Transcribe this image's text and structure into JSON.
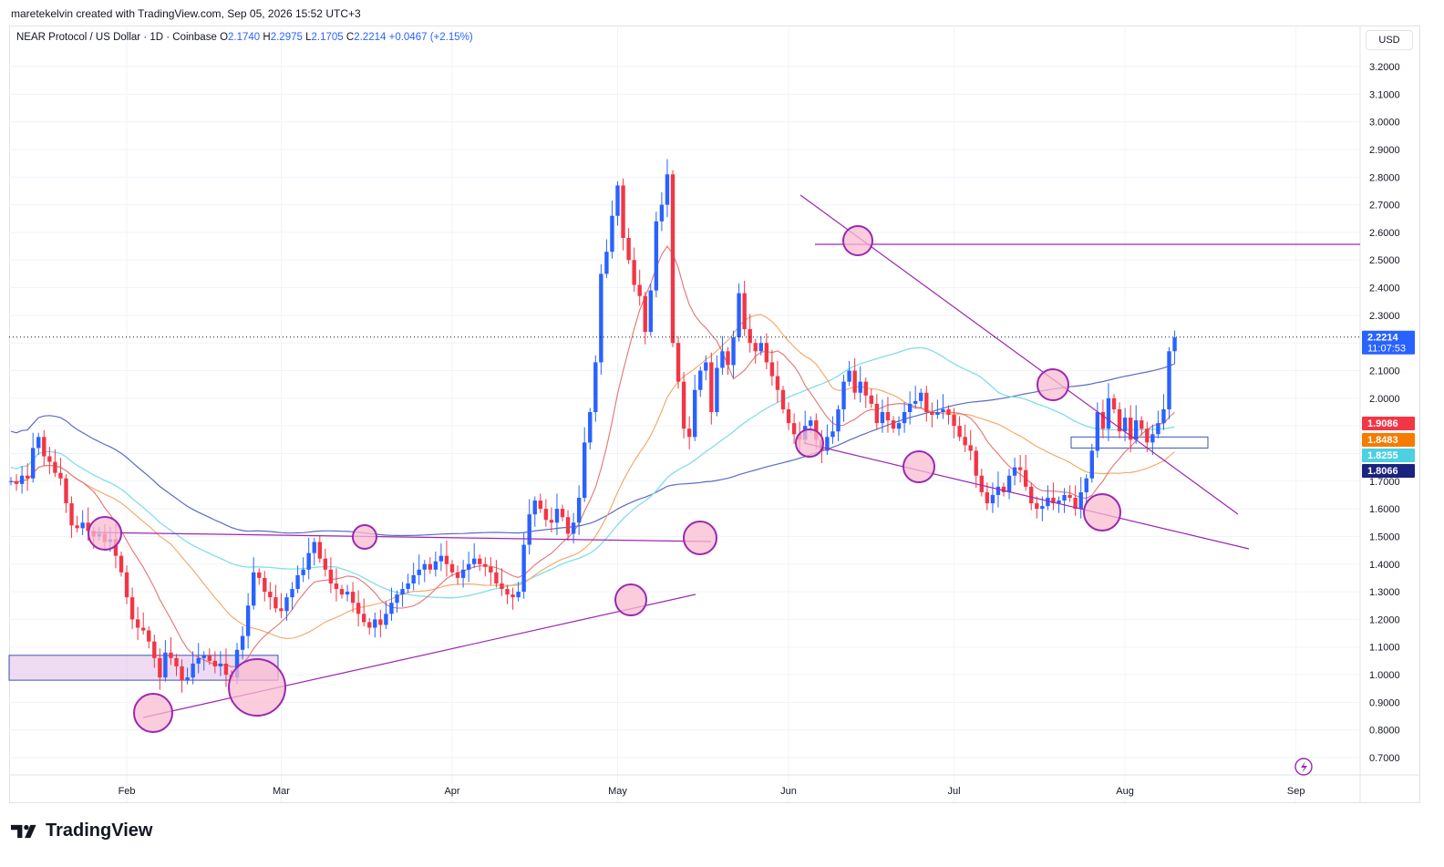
{
  "header": {
    "credit": "maretekelvin created with TradingView.com, Sep 05, 2026 15:52 UTC+3"
  },
  "legend": {
    "symbol": "NEAR Protocol / US Dollar · 1D · Coinbase",
    "o_label": "O",
    "o": "2.1740",
    "h_label": "H",
    "h": "2.2975",
    "l_label": "L",
    "l": "2.1705",
    "c_label": "C",
    "c": "2.2214",
    "change": "+0.0467 (+2.15%)"
  },
  "currency": "USD",
  "brand": "TradingView",
  "colors": {
    "up": "#2962ff",
    "down": "#f23645",
    "ma_red": "#e57373",
    "ma_orange": "#f4a460",
    "ma_cyan": "#80deea",
    "ma_blue": "#5c6bc0",
    "annotation": "#9c27b0",
    "circle_fill": "#f8bbd0"
  },
  "chart_data": {
    "type": "candlestick",
    "ylim": [
      0.66,
      3.25
    ],
    "yticks": [
      "3.2000",
      "3.1000",
      "3.0000",
      "2.9000",
      "2.8000",
      "2.7000",
      "2.6000",
      "2.5000",
      "2.4000",
      "2.3000",
      "2.2000",
      "2.1000",
      "2.0000",
      "1.9000",
      "1.8000",
      "1.7000",
      "1.6000",
      "1.5000",
      "1.4000",
      "1.3000",
      "1.2000",
      "1.1000",
      "1.0000",
      "0.9000",
      "0.8000",
      "0.7000"
    ],
    "xticks": [
      {
        "label": "Feb",
        "day": 31
      },
      {
        "label": "Mar",
        "day": 59
      },
      {
        "label": "Apr",
        "day": 90
      },
      {
        "label": "May",
        "day": 120
      },
      {
        "label": "Jun",
        "day": 151
      },
      {
        "label": "Jul",
        "day": 181
      },
      {
        "label": "Aug",
        "day": 212
      },
      {
        "label": "Sep",
        "day": 243
      }
    ],
    "price_badges": [
      {
        "value": "2.2214",
        "sub": "11:07:53",
        "color": "#2962ff",
        "price": 2.2214
      },
      {
        "value": "1.9086",
        "color": "#f23645",
        "price": 1.9086
      },
      {
        "value": "1.8483",
        "color": "#f57c00",
        "price": 1.8483
      },
      {
        "value": "1.8255",
        "color": "#4dd0e1",
        "price": 1.8255
      },
      {
        "value": "1.8066",
        "color": "#1a237e",
        "price": 1.8066
      }
    ],
    "closes": [
      1.7,
      1.69,
      1.72,
      1.71,
      1.82,
      1.86,
      1.79,
      1.77,
      1.73,
      1.71,
      1.62,
      1.54,
      1.53,
      1.55,
      1.52,
      1.5,
      1.51,
      1.48,
      1.49,
      1.43,
      1.37,
      1.28,
      1.2,
      1.17,
      1.16,
      1.12,
      1.06,
      0.99,
      1.08,
      1.06,
      1.03,
      0.98,
      0.99,
      1.04,
      1.06,
      1.07,
      1.05,
      1.03,
      1.04,
      1.0,
      0.99,
      1.09,
      1.14,
      1.25,
      1.37,
      1.35,
      1.3,
      1.28,
      1.24,
      1.23,
      1.28,
      1.31,
      1.36,
      1.38,
      1.44,
      1.48,
      1.42,
      1.38,
      1.33,
      1.31,
      1.29,
      1.3,
      1.26,
      1.22,
      1.19,
      1.17,
      1.2,
      1.18,
      1.22,
      1.26,
      1.29,
      1.31,
      1.33,
      1.36,
      1.38,
      1.4,
      1.38,
      1.41,
      1.43,
      1.4,
      1.37,
      1.35,
      1.38,
      1.4,
      1.42,
      1.4,
      1.39,
      1.37,
      1.33,
      1.31,
      1.29,
      1.28,
      1.3,
      1.47,
      1.58,
      1.63,
      1.6,
      1.56,
      1.55,
      1.6,
      1.57,
      1.51,
      1.55,
      1.64,
      1.84,
      1.95,
      2.13,
      2.45,
      2.53,
      2.66,
      2.77,
      2.58,
      2.5,
      2.41,
      2.37,
      2.24,
      2.39,
      2.64,
      2.7,
      2.81,
      2.2,
      2.06,
      1.89,
      1.86,
      2.03,
      2.1,
      2.13,
      1.95,
      2.11,
      2.17,
      2.12,
      2.22,
      2.38,
      2.25,
      2.2,
      2.17,
      2.2,
      2.13,
      2.08,
      2.03,
      1.96,
      1.91,
      1.87,
      1.85,
      1.9,
      1.92,
      1.85,
      1.81,
      1.86,
      1.88,
      1.96,
      2.06,
      2.1,
      2.02,
      2.06,
      2.01,
      1.98,
      1.91,
      1.95,
      1.92,
      1.89,
      1.91,
      1.95,
      1.98,
      1.99,
      2.02,
      1.95,
      1.94,
      1.95,
      1.96,
      1.94,
      1.9,
      1.86,
      1.83,
      1.81,
      1.72,
      1.66,
      1.62,
      1.65,
      1.68,
      1.66,
      1.72,
      1.75,
      1.74,
      1.68,
      1.62,
      1.6,
      1.61,
      1.64,
      1.62,
      1.63,
      1.65,
      1.64,
      1.6,
      1.66,
      1.71,
      1.81,
      1.95,
      1.89,
      2.0,
      1.96,
      1.88,
      1.93,
      1.85,
      1.92,
      1.89,
      1.84,
      1.87,
      1.91,
      1.96,
      2.17,
      2.22
    ]
  }
}
